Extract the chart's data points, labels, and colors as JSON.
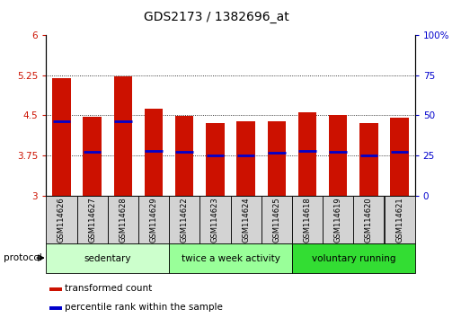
{
  "title": "GDS2173 / 1382696_at",
  "samples": [
    "GSM114626",
    "GSM114627",
    "GSM114628",
    "GSM114629",
    "GSM114622",
    "GSM114623",
    "GSM114624",
    "GSM114625",
    "GSM114618",
    "GSM114619",
    "GSM114620",
    "GSM114621"
  ],
  "bar_tops": [
    5.19,
    4.47,
    5.22,
    4.62,
    4.49,
    4.35,
    4.38,
    4.38,
    4.56,
    4.51,
    4.35,
    4.45
  ],
  "bar_base": 3.0,
  "blue_marks": [
    4.38,
    3.82,
    4.38,
    3.84,
    3.82,
    3.75,
    3.75,
    3.8,
    3.84,
    3.82,
    3.75,
    3.82
  ],
  "ylim_left": [
    3.0,
    6.0
  ],
  "ylim_right": [
    0,
    100
  ],
  "yticks_left": [
    3.0,
    3.75,
    4.5,
    5.25,
    6.0
  ],
  "yticks_right": [
    0,
    25,
    50,
    75,
    100
  ],
  "ytick_labels_left": [
    "3",
    "3.75",
    "4.5",
    "5.25",
    "6"
  ],
  "ytick_labels_right": [
    "0",
    "25",
    "50",
    "75",
    "100%"
  ],
  "groups": [
    {
      "label": "sedentary",
      "indices": [
        0,
        3
      ],
      "color": "#ccffcc"
    },
    {
      "label": "twice a week activity",
      "indices": [
        4,
        7
      ],
      "color": "#99ff99"
    },
    {
      "label": "voluntary running",
      "indices": [
        8,
        11
      ],
      "color": "#33dd33"
    }
  ],
  "bar_color": "#cc1100",
  "blue_color": "#0000cc",
  "protocol_label": "protocol",
  "legend_items": [
    {
      "label": "transformed count",
      "color": "#cc1100"
    },
    {
      "label": "percentile rank within the sample",
      "color": "#0000cc"
    }
  ],
  "grid_color": "#000000",
  "tick_color_left": "#cc1100",
  "tick_color_right": "#0000cc",
  "bg_color": "#ffffff",
  "plot_bg": "#ffffff",
  "bar_width": 0.6
}
